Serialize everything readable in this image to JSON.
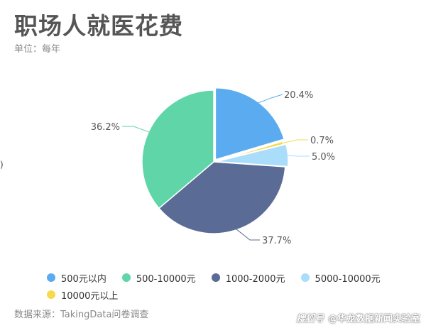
{
  "title": "职场人就医花费",
  "subtitle": "单位：每年",
  "source": "数据来源：TakingData问卷调查",
  "watermark": {
    "logo_text": "搜狐号",
    "account": "@华龙数据新闻实验室"
  },
  "edge_glyph": ")",
  "chart_data": {
    "type": "pie",
    "title": "职场人就医花费",
    "subtitle": "单位：每年",
    "categories": [
      "500元以内",
      "500-10000元",
      "1000-2000元",
      "5000-10000元",
      "10000元以上"
    ],
    "values": [
      20.4,
      36.2,
      37.7,
      5.0,
      0.7
    ],
    "slice_order": [
      "500元以内",
      "10000元以上",
      "5000-10000元",
      "1000-2000元",
      "500-10000元"
    ],
    "slice_labels": [
      "20.4%",
      "0.7%",
      "5.0%",
      "37.7%",
      "36.2%"
    ],
    "colors": [
      "#5aabf0",
      "#5fd5a8",
      "#5a6b95",
      "#a9ddfa",
      "#f6da4c"
    ],
    "legend_position": "bottom",
    "explode": "500元以内 and 5000-10000元 slices offset outward"
  }
}
